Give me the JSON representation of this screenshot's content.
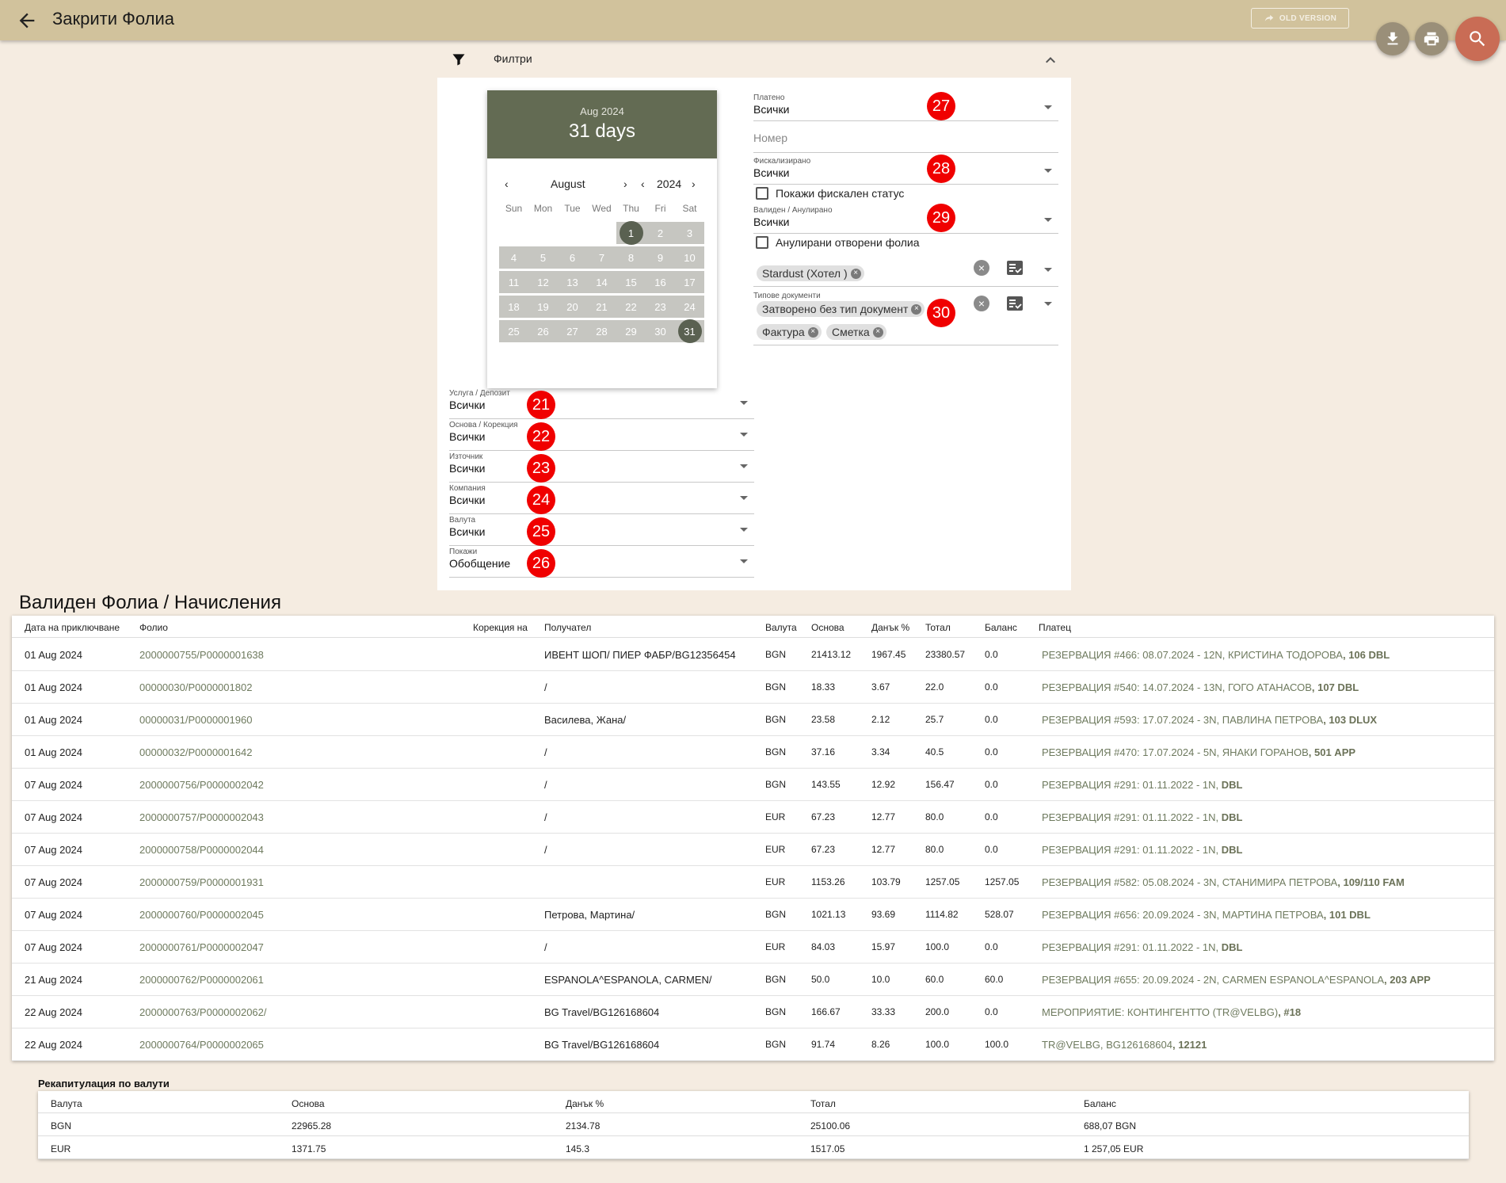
{
  "header": {
    "title": "Закрити Фолиа",
    "old_version_label": "OLD VERSION"
  },
  "filters": {
    "title": "Филтри",
    "datepicker": {
      "header_month": "Aug 2024",
      "header_days": "31 days",
      "month_label": "August",
      "year_label": "2024",
      "weekdays": [
        "Sun",
        "Mon",
        "Tue",
        "Wed",
        "Thu",
        "Fri",
        "Sat"
      ],
      "weeks": [
        [
          "",
          "",
          "",
          "",
          "1",
          "2",
          "3"
        ],
        [
          "4",
          "5",
          "6",
          "7",
          "8",
          "9",
          "10"
        ],
        [
          "11",
          "12",
          "13",
          "14",
          "15",
          "16",
          "17"
        ],
        [
          "18",
          "19",
          "20",
          "21",
          "22",
          "23",
          "24"
        ],
        [
          "25",
          "26",
          "27",
          "28",
          "29",
          "30",
          "31"
        ]
      ],
      "range_start": "1",
      "range_end": "31"
    },
    "left_fields": [
      {
        "label": "Услуга / Депозит",
        "value": "Всички",
        "badge": "21"
      },
      {
        "label": "Основа / Корекция",
        "value": "Всички",
        "badge": "22"
      },
      {
        "label": "Източник",
        "value": "Всички",
        "badge": "23"
      },
      {
        "label": "Компания",
        "value": "Всички",
        "badge": "24"
      },
      {
        "label": "Валута",
        "value": "Всички",
        "badge": "25"
      },
      {
        "label": "Покажи",
        "value": "Обобщение",
        "badge": "26"
      }
    ],
    "paid": {
      "label": "Платено",
      "value": "Всички",
      "badge": "27"
    },
    "number_placeholder": "Номер",
    "fiscalized": {
      "label": "Фискализирано",
      "value": "Всички",
      "badge": "28"
    },
    "show_fiscal_status": "Покажи фискален статус",
    "valid_cancelled": {
      "label": "Валиден / Анулирано",
      "value": "Всички",
      "badge": "29"
    },
    "cancelled_open": "Анулирани отворени фолиа",
    "property_chip": "Stardust (Хотел )",
    "doc_types": {
      "label": "Типове документи",
      "chips": [
        "Затворено без тип документ",
        "Фактура",
        "Сметка"
      ],
      "badge": "30"
    }
  },
  "main_section_title": "Валиден Фолиа / Начисления",
  "table": {
    "columns": [
      "Дата на приключване",
      "Фолио",
      "Корекция на",
      "Получател",
      "Валута",
      "Основа",
      "Данък %",
      "Тотал",
      "Баланс",
      "Платец"
    ],
    "rows": [
      {
        "date": "01 Aug 2024",
        "folio": "2000000755/P0000001638",
        "correction": "",
        "recipient": "ИВЕНТ ШОП/ ПИЕР ФАБР/BG12356454",
        "currency": "BGN",
        "base": "21413.12",
        "tax": "1967.45",
        "total": "23380.57",
        "balance": "0.0",
        "payer_a": "РЕЗЕРВАЦИЯ #466: 08.07.2024 - 12N, ",
        "payer_b": "КРИСТИНА ТОДОРОВА",
        "payer_c": ", 106 DBL"
      },
      {
        "date": "01 Aug 2024",
        "folio": "00000030/P0000001802",
        "correction": "",
        "recipient": "/",
        "currency": "BGN",
        "base": "18.33",
        "tax": "3.67",
        "total": "22.0",
        "balance": "0.0",
        "payer_a": "РЕЗЕРВАЦИЯ #540: 14.07.2024 - 13N, ",
        "payer_b": "ГОГО АТАНАСОВ",
        "payer_c": ", 107 DBL"
      },
      {
        "date": "01 Aug 2024",
        "folio": "00000031/P0000001960",
        "correction": "",
        "recipient": "Василева, Жана/",
        "currency": "BGN",
        "base": "23.58",
        "tax": "2.12",
        "total": "25.7",
        "balance": "0.0",
        "payer_a": "РЕЗЕРВАЦИЯ #593: 17.07.2024 - 3N, ",
        "payer_b": "ПАВЛИНА ПЕТРОВА",
        "payer_c": ", 103 DLUX"
      },
      {
        "date": "01 Aug 2024",
        "folio": "00000032/P0000001642",
        "correction": "",
        "recipient": "/",
        "currency": "BGN",
        "base": "37.16",
        "tax": "3.34",
        "total": "40.5",
        "balance": "0.0",
        "payer_a": "РЕЗЕРВАЦИЯ #470: 17.07.2024 - 5N, ",
        "payer_b": "ЯНАКИ ГОРАНОВ",
        "payer_c": ", 501 APP"
      },
      {
        "date": "07 Aug 2024",
        "folio": "2000000756/P0000002042",
        "correction": "",
        "recipient": "/",
        "currency": "BGN",
        "base": "143.55",
        "tax": "12.92",
        "total": "156.47",
        "balance": "0.0",
        "payer_a": "РЕЗЕРВАЦИЯ #291: 01.11.2022 - 1N, ",
        "payer_b": "",
        "payer_c": "DBL"
      },
      {
        "date": "07 Aug 2024",
        "folio": "2000000757/P0000002043",
        "correction": "",
        "recipient": "/",
        "currency": "EUR",
        "base": "67.23",
        "tax": "12.77",
        "total": "80.0",
        "balance": "0.0",
        "payer_a": "РЕЗЕРВАЦИЯ #291: 01.11.2022 - 1N, ",
        "payer_b": "",
        "payer_c": "DBL"
      },
      {
        "date": "07 Aug 2024",
        "folio": "2000000758/P0000002044",
        "correction": "",
        "recipient": "/",
        "currency": "EUR",
        "base": "67.23",
        "tax": "12.77",
        "total": "80.0",
        "balance": "0.0",
        "payer_a": "РЕЗЕРВАЦИЯ #291: 01.11.2022 - 1N, ",
        "payer_b": "",
        "payer_c": "DBL"
      },
      {
        "date": "07 Aug 2024",
        "folio": "2000000759/P0000001931",
        "correction": "",
        "recipient": "",
        "currency": "EUR",
        "base": "1153.26",
        "tax": "103.79",
        "total": "1257.05",
        "balance": "1257.05",
        "payer_a": "РЕЗЕРВАЦИЯ #582: 05.08.2024 - 3N, ",
        "payer_b": "СТАНИМИРА ПЕТРОВА",
        "payer_c": ", 109/110 FAM"
      },
      {
        "date": "07 Aug 2024",
        "folio": "2000000760/P0000002045",
        "correction": "",
        "recipient": "Петрова, Мартина/",
        "currency": "BGN",
        "base": "1021.13",
        "tax": "93.69",
        "total": "1114.82",
        "balance": "528.07",
        "payer_a": "РЕЗЕРВАЦИЯ #656: 20.09.2024 - 3N, ",
        "payer_b": "МАРТИНА ПЕТРОВА",
        "payer_c": ", 101 DBL"
      },
      {
        "date": "07 Aug 2024",
        "folio": "2000000761/P0000002047",
        "correction": "",
        "recipient": "/",
        "currency": "EUR",
        "base": "84.03",
        "tax": "15.97",
        "total": "100.0",
        "balance": "0.0",
        "payer_a": "РЕЗЕРВАЦИЯ #291: 01.11.2022 - 1N, ",
        "payer_b": "",
        "payer_c": "DBL"
      },
      {
        "date": "21 Aug 2024",
        "folio": "2000000762/P0000002061",
        "correction": "",
        "recipient": "ESPANOLA^ESPANOLA, CARMEN/",
        "currency": "BGN",
        "base": "50.0",
        "tax": "10.0",
        "total": "60.0",
        "balance": "60.0",
        "payer_a": "РЕЗЕРВАЦИЯ #655: 20.09.2024 - 2N, ",
        "payer_b": "CARMEN ESPANOLA^ESPANOLA",
        "payer_c": ", 203 APP"
      },
      {
        "date": "22 Aug 2024",
        "folio": "2000000763/P0000002062/",
        "correction": "",
        "recipient": "BG Travel/BG126168604",
        "currency": "BGN",
        "base": "166.67",
        "tax": "33.33",
        "total": "200.0",
        "balance": "0.0",
        "payer_a": "МЕРОПРИЯТИЕ: КОНТИНГЕНТТО ",
        "payer_b": "(TR@VELBG)",
        "payer_c": ", #18"
      },
      {
        "date": "22 Aug 2024",
        "folio": "2000000764/P0000002065",
        "correction": "",
        "recipient": "BG Travel/BG126168604",
        "currency": "BGN",
        "base": "91.74",
        "tax": "8.26",
        "total": "100.0",
        "balance": "100.0",
        "payer_a": "",
        "payer_b": "TR@VELBG, BG126168604",
        "payer_c": ", 12121"
      }
    ]
  },
  "recap": {
    "title": "Рекапитулация по валути",
    "columns": [
      "Валута",
      "Основа",
      "Данък %",
      "Тотал",
      "Баланс"
    ],
    "rows": [
      {
        "currency": "BGN",
        "base": "22965.28",
        "tax": "2134.78",
        "total": "25100.06",
        "balance": "688,07 BGN"
      },
      {
        "currency": "EUR",
        "base": "1371.75",
        "tax": "145.3",
        "total": "1517.05",
        "balance": "1 257,05 EUR"
      }
    ]
  }
}
